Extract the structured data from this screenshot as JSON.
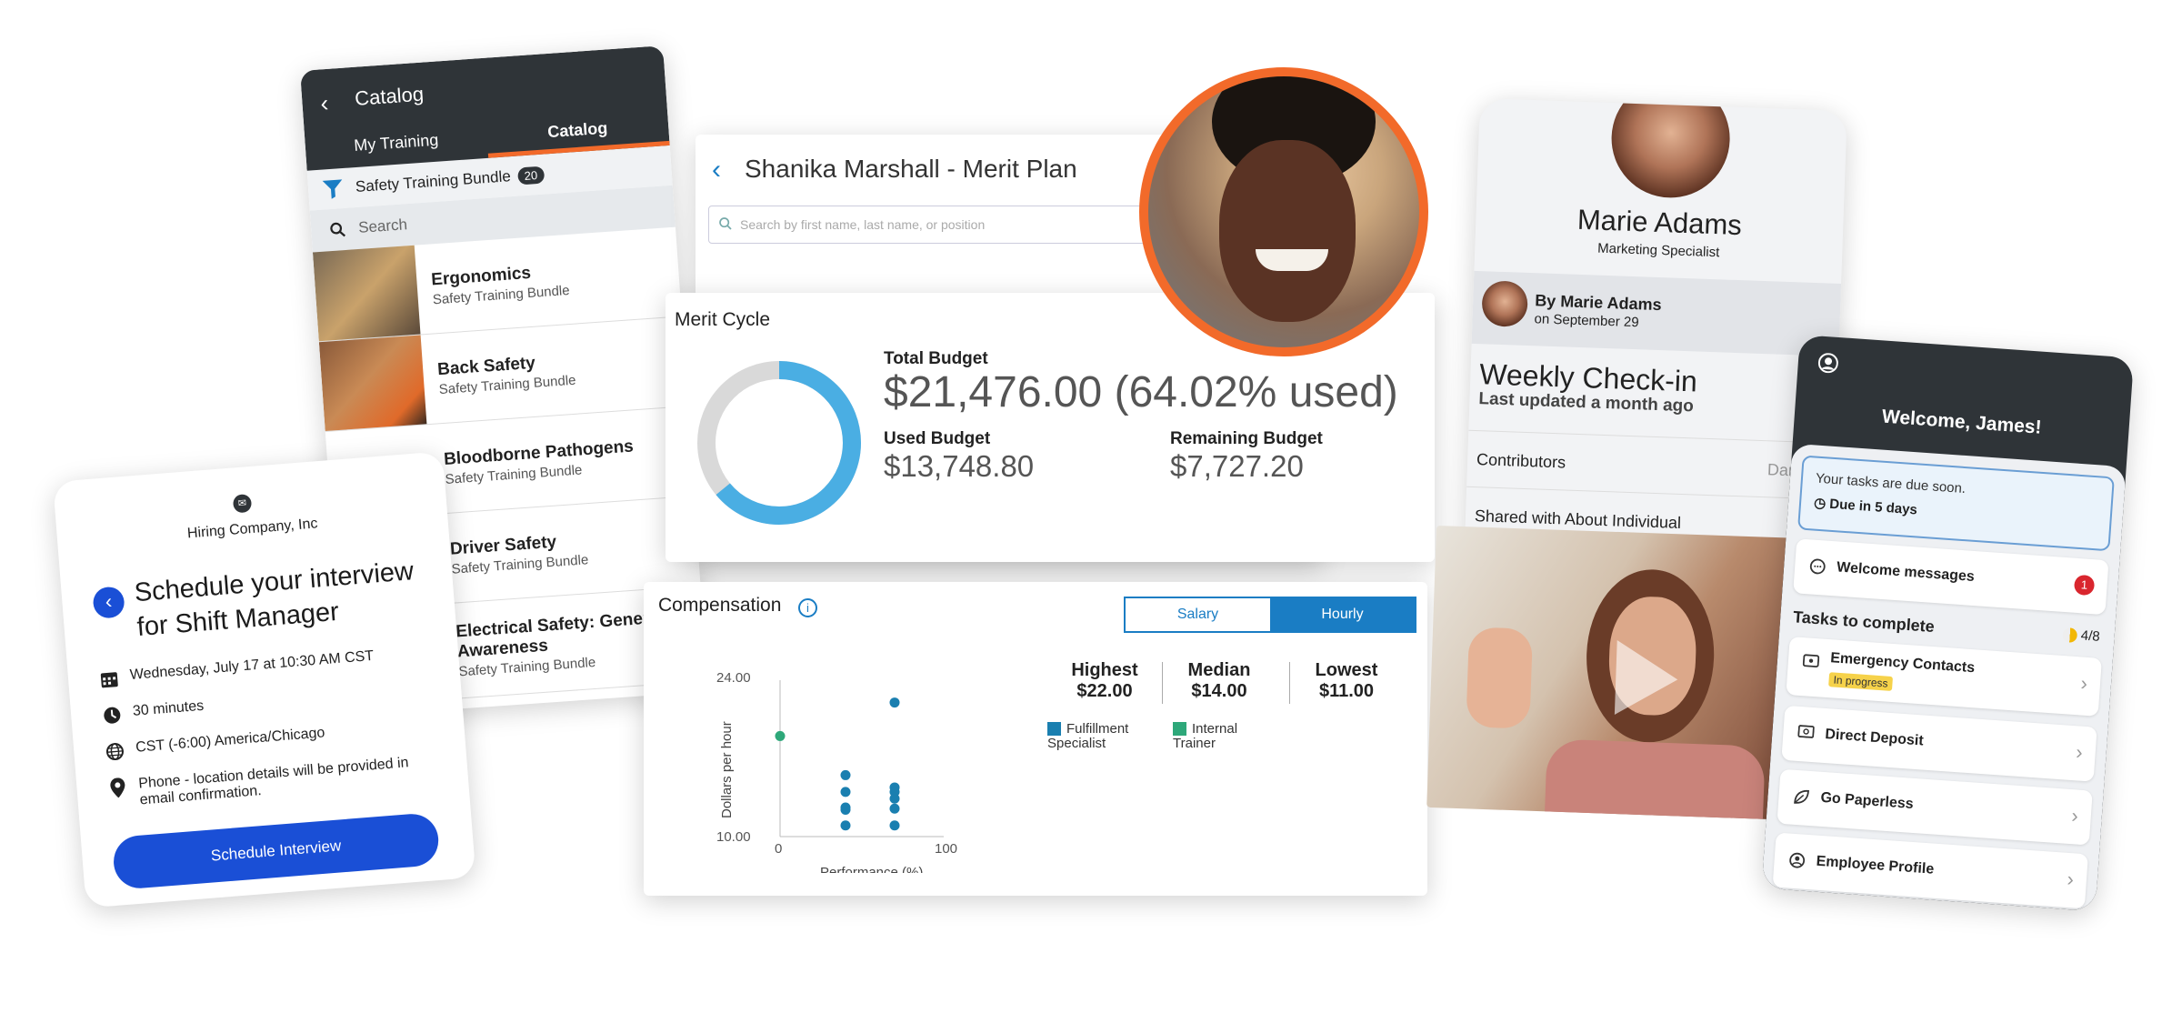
{
  "catalog": {
    "back_icon": "chevron-left-icon",
    "title": "Catalog",
    "tabs": [
      "My Training",
      "Catalog"
    ],
    "filter_label": "Safety Training Bundle",
    "filter_count": "20",
    "search_placeholder": "Search",
    "items": [
      {
        "title": "Ergonomics",
        "subtitle": "Safety Training Bundle"
      },
      {
        "title": "Back Safety",
        "subtitle": "Safety Training Bundle"
      },
      {
        "title": "Bloodborne Pathogens",
        "subtitle": "Safety Training Bundle"
      },
      {
        "title": "Driver Safety",
        "subtitle": "Safety Training Bundle"
      },
      {
        "title": "Electrical Safety: General Awareness",
        "subtitle": "Safety Training Bundle"
      }
    ]
  },
  "schedule": {
    "company": "Hiring Company, Inc",
    "heading": "Schedule your interview for Shift Manager",
    "date": "Wednesday, July 17 at 10:30 AM CST",
    "duration": "30 minutes",
    "timezone": "CST (-6:00) America/Chicago",
    "location": "Phone - location details will be provided in email confirmation.",
    "button": "Schedule Interview"
  },
  "merit_plan": {
    "title": "Shanika Marshall - Merit Plan",
    "search_placeholder": "Search by first name, last name, or position"
  },
  "merit_cycle": {
    "title": "Merit Cycle",
    "total_label": "Total Budget",
    "total_value": "$21,476.00",
    "used_pct": "(64.02% used)",
    "used_fraction": 0.6402,
    "used_label": "Used Budget",
    "used_value": "$13,748.80",
    "remaining_label": "Remaining Budget",
    "remaining_value": "$7,727.20",
    "colors": {
      "used": "#4aaee3",
      "remaining": "#d9d9d9"
    }
  },
  "compensation": {
    "title": "Compensation",
    "toggle": {
      "salary": "Salary",
      "hourly": "Hourly",
      "selected": "Hourly"
    },
    "stats": [
      {
        "label": "Highest",
        "value": "$22.00"
      },
      {
        "label": "Median",
        "value": "$14.00"
      },
      {
        "label": "Lowest",
        "value": "$11.00"
      }
    ],
    "legend": [
      {
        "name": "Fulfillment Specialist",
        "color": "#1a7fb0"
      },
      {
        "name": "Internal Trainer",
        "color": "#2ea87a"
      }
    ]
  },
  "chart_data": {
    "type": "scatter",
    "xlabel": "Performance (%)",
    "ylabel": "Dollars per hour",
    "xlim": [
      0,
      100
    ],
    "ylim": [
      10,
      24
    ],
    "x_ticks": [
      "0",
      "100"
    ],
    "y_ticks": [
      "24.00",
      "10.00"
    ],
    "series": [
      {
        "name": "Fulfillment Specialist",
        "color": "#1a7fb0",
        "points": [
          [
            40,
            15.5
          ],
          [
            40,
            14
          ],
          [
            40,
            12.6
          ],
          [
            40,
            12.4
          ],
          [
            40,
            11
          ],
          [
            70,
            22
          ],
          [
            70,
            14.4
          ],
          [
            70,
            14
          ],
          [
            70,
            13.4
          ],
          [
            70,
            12.5
          ],
          [
            70,
            11
          ]
        ]
      },
      {
        "name": "Internal Trainer",
        "color": "#2ea87a",
        "points": [
          [
            0,
            19
          ]
        ]
      }
    ]
  },
  "marie": {
    "name": "Marie Adams",
    "role": "Marketing Specialist",
    "by": "By Marie Adams",
    "date": "on September 29",
    "checkin_title": "Weekly Check-in",
    "checkin_sub": "Last updated a month ago",
    "contributors_label": "Contributors",
    "contributors_value": "Damien",
    "shared_label": "Shared with About Individual"
  },
  "welcome": {
    "title": "Welcome, James!",
    "due_text": "Your tasks are due soon.",
    "due_in": "Due in 5 days",
    "messages_label": "Welcome messages",
    "messages_count": "1",
    "tasks_title": "Tasks to complete",
    "tasks_progress": "4/8",
    "tasks": [
      {
        "label": "Emergency Contacts",
        "status": "In progress",
        "icon": "contact-card-icon"
      },
      {
        "label": "Direct Deposit",
        "icon": "bank-note-icon"
      },
      {
        "label": "Go Paperless",
        "icon": "leaf-icon"
      },
      {
        "label": "Employee Profile",
        "icon": "user-circle-icon"
      }
    ]
  }
}
